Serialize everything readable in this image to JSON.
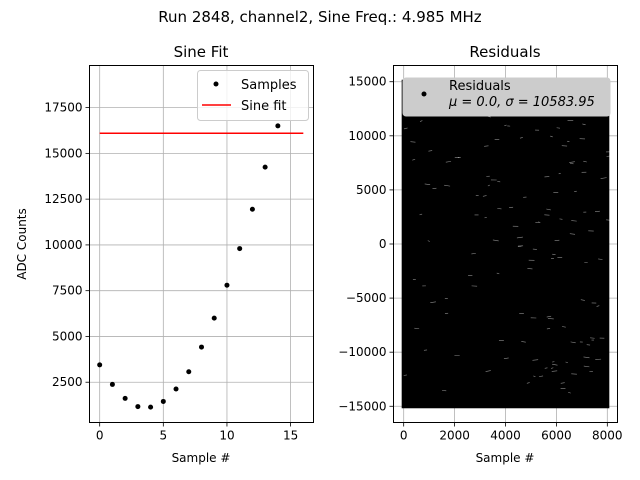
{
  "suptitle": "Run 2848, channel2, Sine Freq.: 4.985 MHz",
  "chart_data": [
    {
      "type": "scatter",
      "title": "Sine Fit",
      "xlabel": "Sample #",
      "ylabel": "ADC Counts",
      "xlim": [
        -0.8,
        16.8
      ],
      "ylim": [
        300,
        19800
      ],
      "xticks": [
        0,
        5,
        10,
        15
      ],
      "xtick_labels": [
        "0",
        "5",
        "10",
        "15"
      ],
      "yticks": [
        2500,
        5000,
        7500,
        10000,
        12500,
        15000,
        17500
      ],
      "ytick_labels": [
        "2500",
        "5000",
        "7500",
        "10000",
        "12500",
        "15000",
        "17500"
      ],
      "grid": true,
      "legend_position": "upper right",
      "series": [
        {
          "name": "Samples",
          "kind": "points",
          "color": "#000000",
          "x": [
            0,
            1,
            2,
            3,
            4,
            5,
            6,
            7,
            8,
            9,
            10,
            11,
            12,
            13,
            14
          ],
          "y": [
            3450,
            2380,
            1620,
            1170,
            1140,
            1450,
            2130,
            3070,
            4420,
            6000,
            7800,
            9800,
            11950,
            14250,
            16500
          ]
        },
        {
          "name": "Sine fit",
          "kind": "line",
          "color": "#ff0000",
          "x": [
            0,
            16
          ],
          "y": [
            16100,
            16100
          ]
        }
      ]
    },
    {
      "type": "scatter",
      "title": "Residuals",
      "xlabel": "Sample #",
      "ylabel": "",
      "xlim": [
        -400,
        8400
      ],
      "ylim": [
        -16500,
        16500
      ],
      "xticks": [
        0,
        2000,
        4000,
        6000,
        8000
      ],
      "xtick_labels": [
        "0",
        "2000",
        "4000",
        "6000",
        "8000"
      ],
      "yticks": [
        -15000,
        -10000,
        -5000,
        0,
        5000,
        10000,
        15000
      ],
      "ytick_labels": [
        "−15000",
        "−10000",
        "−5000",
        "0",
        "5000",
        "10000",
        "15000"
      ],
      "grid": true,
      "legend_position": "upper right",
      "series": [
        {
          "name": "Residuals",
          "stat_label": "μ = 0.0, σ = 10583.95",
          "kind": "dense-points",
          "color": "#000000",
          "x_range": [
            0,
            8000
          ],
          "y_range": [
            -15000,
            15000
          ],
          "n_points": 8000
        }
      ]
    }
  ]
}
